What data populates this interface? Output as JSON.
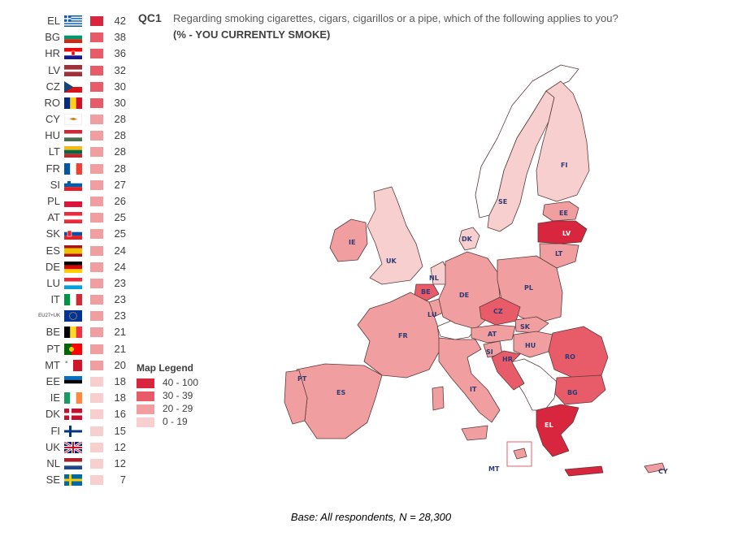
{
  "question": {
    "id": "QC1",
    "text": "Regarding smoking cigarettes, cigars, cigarillos or a pipe, which of the following applies to you?",
    "subtitle": "(% - YOU CURRENTLY SMOKE)"
  },
  "colors": {
    "band_40_100": "#d7263d",
    "band_30_39": "#e85c69",
    "band_20_29": "#f09ea0",
    "band_0_19": "#f7cfcf",
    "outside": "#ffffff",
    "border": "#5a3a3a"
  },
  "legend": {
    "title": "Map Legend",
    "items": [
      {
        "label": "40 - 100",
        "color": "#d7263d"
      },
      {
        "label": "30 - 39",
        "color": "#e85c69"
      },
      {
        "label": "20 - 29",
        "color": "#f09ea0"
      },
      {
        "label": "0 - 19",
        "color": "#f7cfcf"
      }
    ]
  },
  "chart_data": {
    "type": "bar",
    "categories": [
      "EL",
      "BG",
      "HR",
      "LV",
      "CZ",
      "RO",
      "CY",
      "HU",
      "LT",
      "FR",
      "SI",
      "PL",
      "AT",
      "SK",
      "ES",
      "DE",
      "LU",
      "IT",
      "EU27+UK",
      "BE",
      "PT",
      "MT",
      "EE",
      "IE",
      "DK",
      "FI",
      "UK",
      "NL",
      "SE"
    ],
    "values": [
      42,
      38,
      36,
      32,
      30,
      30,
      28,
      28,
      28,
      28,
      27,
      26,
      25,
      25,
      24,
      24,
      23,
      23,
      23,
      21,
      21,
      20,
      18,
      18,
      16,
      15,
      12,
      12,
      7
    ],
    "title": "(% - YOU CURRENTLY SMOKE)"
  },
  "ranking": [
    {
      "code": "EL",
      "value": "42",
      "flag": "greece-flag-icon"
    },
    {
      "code": "BG",
      "value": "38",
      "flag": "bulgaria-flag-icon"
    },
    {
      "code": "HR",
      "value": "36",
      "flag": "croatia-flag-icon"
    },
    {
      "code": "LV",
      "value": "32",
      "flag": "latvia-flag-icon"
    },
    {
      "code": "CZ",
      "value": "30",
      "flag": "czechia-flag-icon"
    },
    {
      "code": "RO",
      "value": "30",
      "flag": "romania-flag-icon"
    },
    {
      "code": "CY",
      "value": "28",
      "flag": "cyprus-flag-icon"
    },
    {
      "code": "HU",
      "value": "28",
      "flag": "hungary-flag-icon"
    },
    {
      "code": "LT",
      "value": "28",
      "flag": "lithuania-flag-icon"
    },
    {
      "code": "FR",
      "value": "28",
      "flag": "france-flag-icon"
    },
    {
      "code": "SI",
      "value": "27",
      "flag": "slovenia-flag-icon"
    },
    {
      "code": "PL",
      "value": "26",
      "flag": "poland-flag-icon"
    },
    {
      "code": "AT",
      "value": "25",
      "flag": "austria-flag-icon"
    },
    {
      "code": "SK",
      "value": "25",
      "flag": "slovakia-flag-icon"
    },
    {
      "code": "ES",
      "value": "24",
      "flag": "spain-flag-icon"
    },
    {
      "code": "DE",
      "value": "24",
      "flag": "germany-flag-icon"
    },
    {
      "code": "LU",
      "value": "23",
      "flag": "luxembourg-flag-icon"
    },
    {
      "code": "IT",
      "value": "23",
      "flag": "italy-flag-icon"
    },
    {
      "code": "EU27+UK",
      "value": "23",
      "flag": "eu-flag-icon"
    },
    {
      "code": "BE",
      "value": "21",
      "flag": "belgium-flag-icon"
    },
    {
      "code": "PT",
      "value": "21",
      "flag": "portugal-flag-icon"
    },
    {
      "code": "MT",
      "value": "20",
      "flag": "malta-flag-icon"
    },
    {
      "code": "EE",
      "value": "18",
      "flag": "estonia-flag-icon"
    },
    {
      "code": "IE",
      "value": "18",
      "flag": "ireland-flag-icon"
    },
    {
      "code": "DK",
      "value": "16",
      "flag": "denmark-flag-icon"
    },
    {
      "code": "FI",
      "value": "15",
      "flag": "finland-flag-icon"
    },
    {
      "code": "UK",
      "value": "12",
      "flag": "uk-flag-icon"
    },
    {
      "code": "NL",
      "value": "12",
      "flag": "netherlands-flag-icon"
    },
    {
      "code": "SE",
      "value": "7",
      "flag": "sweden-flag-icon"
    }
  ],
  "map_labels": [
    "IE",
    "UK",
    "SE",
    "FI",
    "EE",
    "LV",
    "LT",
    "DK",
    "NL",
    "BE",
    "LU",
    "DE",
    "PL",
    "CZ",
    "SK",
    "AT",
    "HU",
    "RO",
    "FR",
    "SI",
    "HR",
    "BG",
    "PT",
    "ES",
    "IT",
    "EL",
    "MT",
    "CY"
  ],
  "base_note": "Base: All respondents, N = 28,300"
}
